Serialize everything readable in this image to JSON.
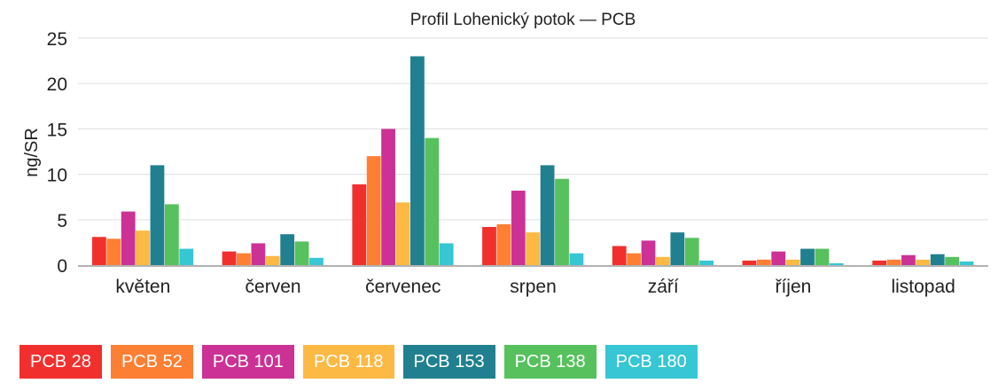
{
  "chart_data": {
    "type": "bar",
    "title": "Profil Lohenický potok — PCB",
    "ylabel": "ng/SR",
    "xlabel": "",
    "ylim": [
      0,
      25
    ],
    "yticks": [
      0,
      5,
      10,
      15,
      20,
      25
    ],
    "grid": true,
    "legend_placement": "bottom",
    "categories": [
      "květen",
      "červen",
      "červenec",
      "srpen",
      "září",
      "říjen",
      "listopad"
    ],
    "series": [
      {
        "name": "PCB 28",
        "color": "#f1302e",
        "values": [
          3.1,
          1.5,
          8.9,
          4.2,
          2.1,
          0.5,
          0.5
        ]
      },
      {
        "name": "PCB 52",
        "color": "#fd7f33",
        "values": [
          2.9,
          1.3,
          12,
          4.5,
          1.3,
          0.6,
          0.6
        ]
      },
      {
        "name": "PCB 101",
        "color": "#cc3296",
        "values": [
          5.9,
          2.4,
          15,
          8.2,
          2.7,
          1.5,
          1.1
        ]
      },
      {
        "name": "PCB 118",
        "color": "#fcb944",
        "values": [
          3.8,
          1.0,
          6.9,
          3.6,
          0.9,
          0.6,
          0.6
        ]
      },
      {
        "name": "PCB 153",
        "color": "#21808f",
        "values": [
          11,
          3.4,
          23,
          11,
          3.6,
          1.8,
          1.2
        ]
      },
      {
        "name": "PCB 138",
        "color": "#56c15d",
        "values": [
          6.7,
          2.6,
          14,
          9.5,
          3.0,
          1.8,
          0.9
        ]
      },
      {
        "name": "PCB 180",
        "color": "#36c6d4",
        "values": [
          1.8,
          0.8,
          2.4,
          1.3,
          0.5,
          0.2,
          0.4
        ]
      }
    ]
  }
}
